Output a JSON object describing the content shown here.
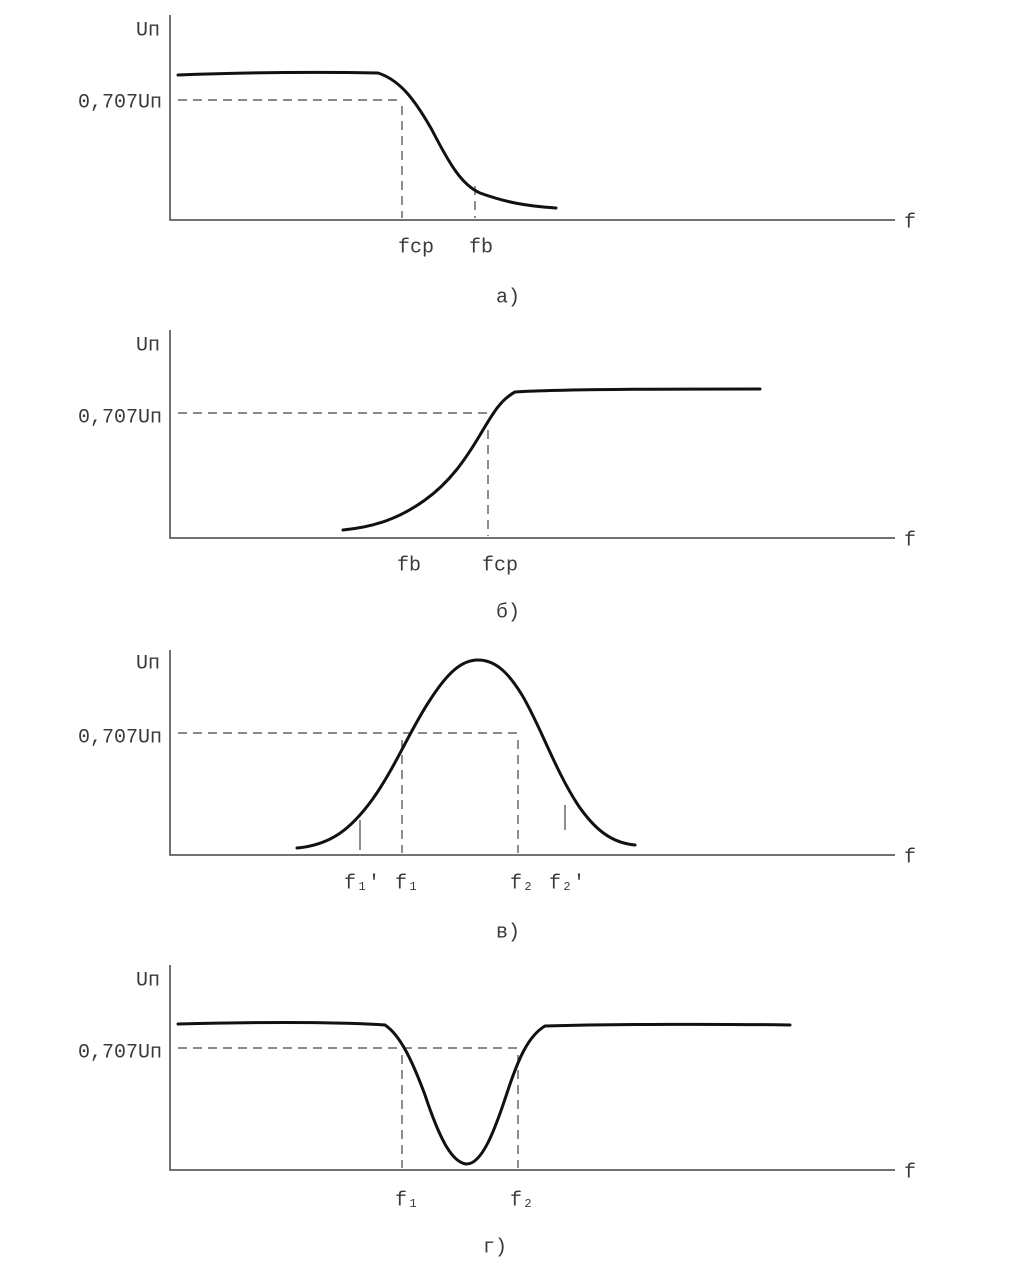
{
  "panels": [
    {
      "y_label": "Uп",
      "level_label": "0,707Uп",
      "x_label": "f",
      "freq_labels": [
        "fср",
        "fb"
      ],
      "caption": "а)"
    },
    {
      "y_label": "Uп",
      "level_label": "0,707Uп",
      "x_label": "f",
      "freq_labels": [
        "fb",
        "fср"
      ],
      "caption": "б)"
    },
    {
      "y_label": "Uп",
      "level_label": "0,707Uп",
      "x_label": "f",
      "freq_labels": [
        "f₁'",
        "f₁",
        "f₂",
        "f₂'"
      ],
      "caption": "в)"
    },
    {
      "y_label": "Uп",
      "level_label": "0,707Uп",
      "x_label": "f",
      "freq_labels": [
        "f₁",
        "f₂"
      ],
      "caption": "г)"
    }
  ]
}
